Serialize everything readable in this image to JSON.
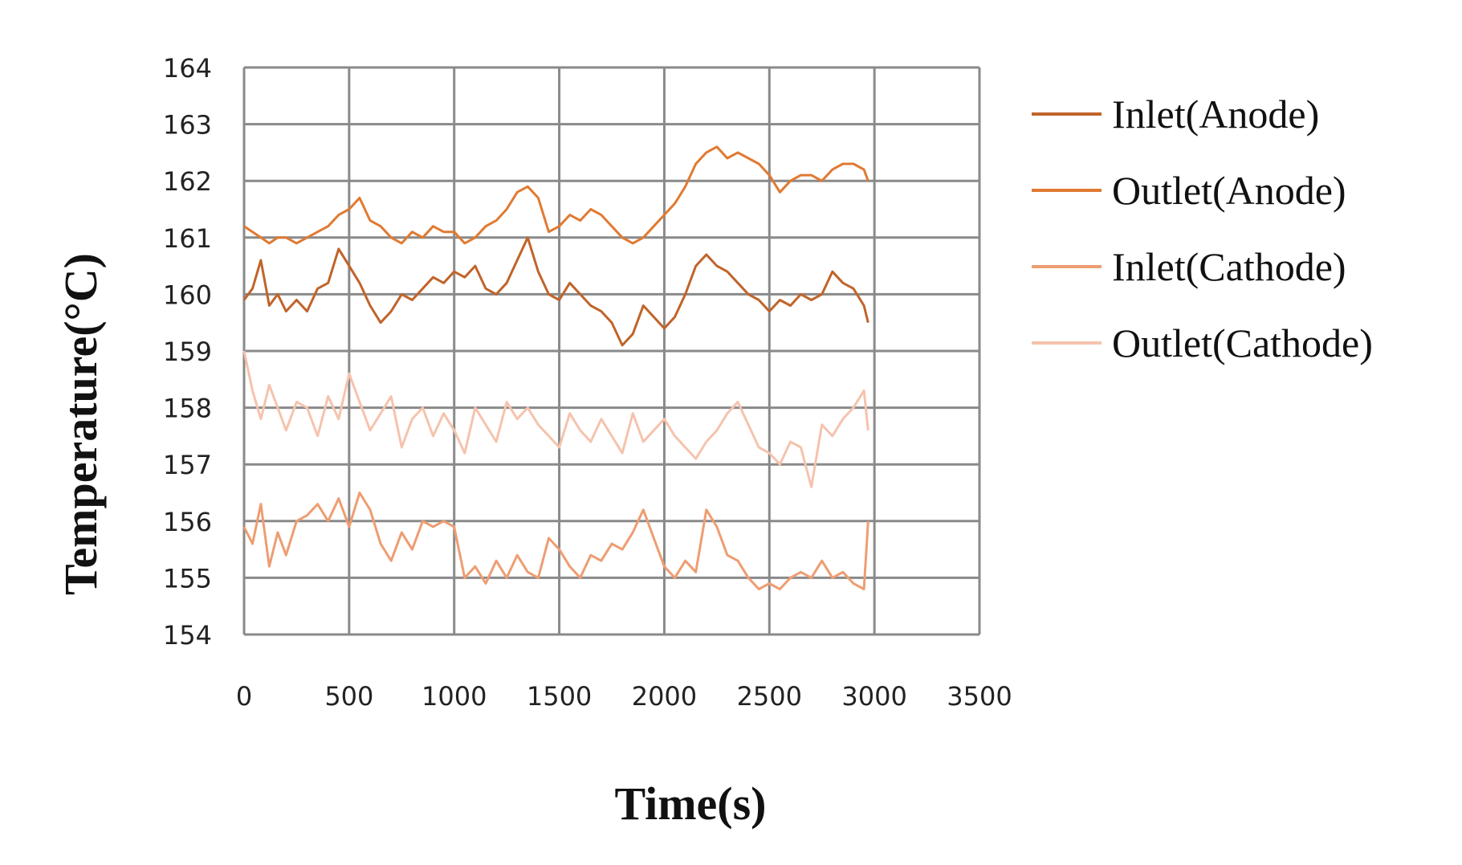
{
  "chart_data": {
    "type": "line",
    "title": "",
    "xlabel": "Time(s)",
    "ylabel": "Temperature(°C)",
    "xlim": [
      0,
      3500
    ],
    "ylim": [
      154,
      164
    ],
    "x_ticks": [
      "0",
      "500",
      "1000",
      "1500",
      "2000",
      "2500",
      "3000",
      "3500"
    ],
    "y_ticks": [
      "154",
      "155",
      "156",
      "157",
      "158",
      "159",
      "160",
      "161",
      "162",
      "163",
      "164"
    ],
    "grid": true,
    "legend_position": "right",
    "series": [
      {
        "name": "Inlet(Anode)",
        "color": "#C0642A",
        "x": [
          0,
          40,
          80,
          120,
          160,
          200,
          250,
          300,
          350,
          400,
          450,
          500,
          550,
          600,
          650,
          700,
          750,
          800,
          850,
          900,
          950,
          1000,
          1050,
          1100,
          1150,
          1200,
          1250,
          1300,
          1350,
          1400,
          1450,
          1500,
          1550,
          1600,
          1650,
          1700,
          1750,
          1800,
          1850,
          1900,
          1950,
          2000,
          2050,
          2100,
          2150,
          2200,
          2250,
          2300,
          2350,
          2400,
          2450,
          2500,
          2550,
          2600,
          2650,
          2700,
          2750,
          2800,
          2850,
          2900,
          2950,
          2970
        ],
        "y": [
          159.9,
          160.1,
          160.6,
          159.8,
          160.0,
          159.7,
          159.9,
          159.7,
          160.1,
          160.2,
          160.8,
          160.5,
          160.2,
          159.8,
          159.5,
          159.7,
          160.0,
          159.9,
          160.1,
          160.3,
          160.2,
          160.4,
          160.3,
          160.5,
          160.1,
          160.0,
          160.2,
          160.6,
          161.0,
          160.4,
          160.0,
          159.9,
          160.2,
          160.0,
          159.8,
          159.7,
          159.5,
          159.1,
          159.3,
          159.8,
          159.6,
          159.4,
          159.6,
          160.0,
          160.5,
          160.7,
          160.5,
          160.4,
          160.2,
          160.0,
          159.9,
          159.7,
          159.9,
          159.8,
          160.0,
          159.9,
          160.0,
          160.4,
          160.2,
          160.1,
          159.8,
          159.5
        ]
      },
      {
        "name": "Outlet(Anode)",
        "color": "#E07A32",
        "x": [
          0,
          40,
          80,
          120,
          160,
          200,
          250,
          300,
          350,
          400,
          450,
          500,
          550,
          600,
          650,
          700,
          750,
          800,
          850,
          900,
          950,
          1000,
          1050,
          1100,
          1150,
          1200,
          1250,
          1300,
          1350,
          1400,
          1450,
          1500,
          1550,
          1600,
          1650,
          1700,
          1750,
          1800,
          1850,
          1900,
          1950,
          2000,
          2050,
          2100,
          2150,
          2200,
          2250,
          2300,
          2350,
          2400,
          2450,
          2500,
          2550,
          2600,
          2650,
          2700,
          2750,
          2800,
          2850,
          2900,
          2950,
          2970
        ],
        "y": [
          161.2,
          161.1,
          161.0,
          160.9,
          161.0,
          161.0,
          160.9,
          161.0,
          161.1,
          161.2,
          161.4,
          161.5,
          161.7,
          161.3,
          161.2,
          161.0,
          160.9,
          161.1,
          161.0,
          161.2,
          161.1,
          161.1,
          160.9,
          161.0,
          161.2,
          161.3,
          161.5,
          161.8,
          161.9,
          161.7,
          161.1,
          161.2,
          161.4,
          161.3,
          161.5,
          161.4,
          161.2,
          161.0,
          160.9,
          161.0,
          161.2,
          161.4,
          161.6,
          161.9,
          162.3,
          162.5,
          162.6,
          162.4,
          162.5,
          162.4,
          162.3,
          162.1,
          161.8,
          162.0,
          162.1,
          162.1,
          162.0,
          162.2,
          162.3,
          162.3,
          162.2,
          162.0
        ]
      },
      {
        "name": "Inlet(Cathode)",
        "color": "#EE9D72",
        "x": [
          0,
          40,
          80,
          120,
          160,
          200,
          250,
          300,
          350,
          400,
          450,
          500,
          550,
          600,
          650,
          700,
          750,
          800,
          850,
          900,
          950,
          1000,
          1050,
          1100,
          1150,
          1200,
          1250,
          1300,
          1350,
          1400,
          1450,
          1500,
          1550,
          1600,
          1650,
          1700,
          1750,
          1800,
          1850,
          1900,
          1950,
          2000,
          2050,
          2100,
          2150,
          2200,
          2250,
          2300,
          2350,
          2400,
          2450,
          2500,
          2550,
          2600,
          2650,
          2700,
          2750,
          2800,
          2850,
          2900,
          2950,
          2970
        ],
        "y": [
          155.9,
          155.6,
          156.3,
          155.2,
          155.8,
          155.4,
          156.0,
          156.1,
          156.3,
          156.0,
          156.4,
          155.9,
          156.5,
          156.2,
          155.6,
          155.3,
          155.8,
          155.5,
          156.0,
          155.9,
          156.0,
          155.9,
          155.0,
          155.2,
          154.9,
          155.3,
          155.0,
          155.4,
          155.1,
          155.0,
          155.7,
          155.5,
          155.2,
          155.0,
          155.4,
          155.3,
          155.6,
          155.5,
          155.8,
          156.2,
          155.7,
          155.2,
          155.0,
          155.3,
          155.1,
          156.2,
          155.9,
          155.4,
          155.3,
          155.0,
          154.8,
          154.9,
          154.8,
          155.0,
          155.1,
          155.0,
          155.3,
          155.0,
          155.1,
          154.9,
          154.8,
          156.0
        ]
      },
      {
        "name": "Outlet(Cathode)",
        "color": "#F5C3AD",
        "x": [
          0,
          40,
          80,
          120,
          160,
          200,
          250,
          300,
          350,
          400,
          450,
          500,
          550,
          600,
          650,
          700,
          750,
          800,
          850,
          900,
          950,
          1000,
          1050,
          1100,
          1150,
          1200,
          1250,
          1300,
          1350,
          1400,
          1450,
          1500,
          1550,
          1600,
          1650,
          1700,
          1750,
          1800,
          1850,
          1900,
          1950,
          2000,
          2050,
          2100,
          2150,
          2200,
          2250,
          2300,
          2350,
          2400,
          2450,
          2500,
          2550,
          2600,
          2650,
          2700,
          2750,
          2800,
          2850,
          2900,
          2950,
          2970
        ],
        "y": [
          159.0,
          158.3,
          157.8,
          158.4,
          158.0,
          157.6,
          158.1,
          158.0,
          157.5,
          158.2,
          157.8,
          158.6,
          158.1,
          157.6,
          157.9,
          158.2,
          157.3,
          157.8,
          158.0,
          157.5,
          157.9,
          157.6,
          157.2,
          158.0,
          157.7,
          157.4,
          158.1,
          157.8,
          158.0,
          157.7,
          157.5,
          157.3,
          157.9,
          157.6,
          157.4,
          157.8,
          157.5,
          157.2,
          157.9,
          157.4,
          157.6,
          157.8,
          157.5,
          157.3,
          157.1,
          157.4,
          157.6,
          157.9,
          158.1,
          157.7,
          157.3,
          157.2,
          157.0,
          157.4,
          157.3,
          156.6,
          157.7,
          157.5,
          157.8,
          158.0,
          158.3,
          157.6
        ]
      }
    ]
  }
}
